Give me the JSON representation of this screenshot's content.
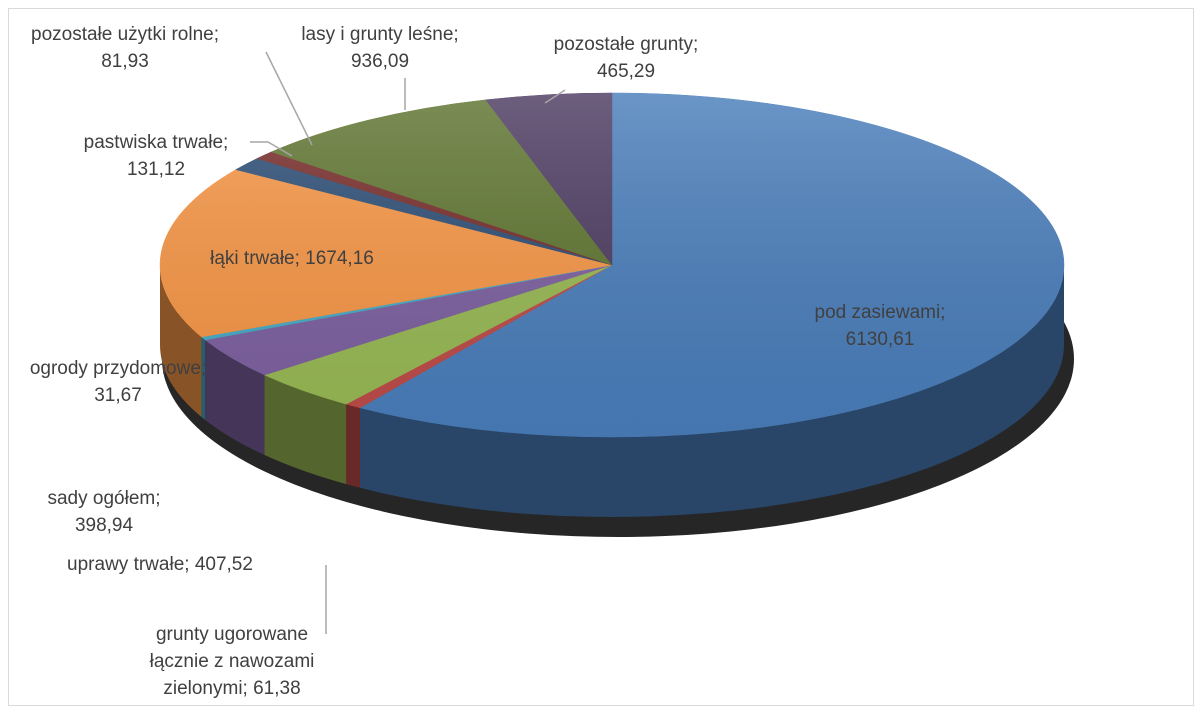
{
  "chart_data": {
    "type": "pie",
    "title": "",
    "legend": "none",
    "slices": [
      {
        "label": "pod zasiewami",
        "value": 6130.61,
        "value_text": "6130,61",
        "color": "#4a7ebb",
        "label_lines": [
          "pod zasiewami;",
          "6130,61"
        ]
      },
      {
        "label": "grunty ugorowane łącznie z nawozami zielonymi",
        "value": 61.38,
        "value_text": "61,38",
        "color": "#be4b48",
        "label_lines": [
          "grunty ugorowane",
          "łącznie z nawozami",
          "zielonymi; 61,38"
        ]
      },
      {
        "label": "uprawy trwałe",
        "value": 407.52,
        "value_text": "407,52",
        "color": "#98b954",
        "label_lines": [
          "uprawy trwałe; 407,52"
        ]
      },
      {
        "label": "sady ogółem",
        "value": 398.94,
        "value_text": "398,94",
        "color": "#7d60a0",
        "label_lines": [
          "sady ogółem;",
          "398,94"
        ]
      },
      {
        "label": "ogrody przydomowe",
        "value": 31.67,
        "value_text": "31,67",
        "color": "#46aac5",
        "label_lines": [
          "ogrody przydomowe;",
          "31,67"
        ]
      },
      {
        "label": "łąki trwałe",
        "value": 1674.16,
        "value_text": "1674,16",
        "color": "#f79646",
        "label_lines": [
          "łąki trwałe; 1674,16"
        ]
      },
      {
        "label": "pastwiska trwałe",
        "value": 131.12,
        "value_text": "131,12",
        "color": "#2c4d75",
        "label_lines": [
          "pastwiska trwałe;",
          "131,12"
        ]
      },
      {
        "label": "pozostałe użytki rolne",
        "value": 81.93,
        "value_text": "81,93",
        "color": "#772c2a",
        "label_lines": [
          "pozostałe użytki rolne;",
          "81,93"
        ]
      },
      {
        "label": "lasy i grunty leśne",
        "value": 936.09,
        "value_text": "936,09",
        "color": "#5f7530",
        "label_lines": [
          "lasy i grunty leśne;",
          "936,09"
        ]
      },
      {
        "label": "pozostałe grunty",
        "value": 465.29,
        "value_text": "465,29",
        "color": "#4d3b62",
        "label_lines": [
          "pozostałe grunty;",
          "465,29"
        ]
      }
    ]
  }
}
